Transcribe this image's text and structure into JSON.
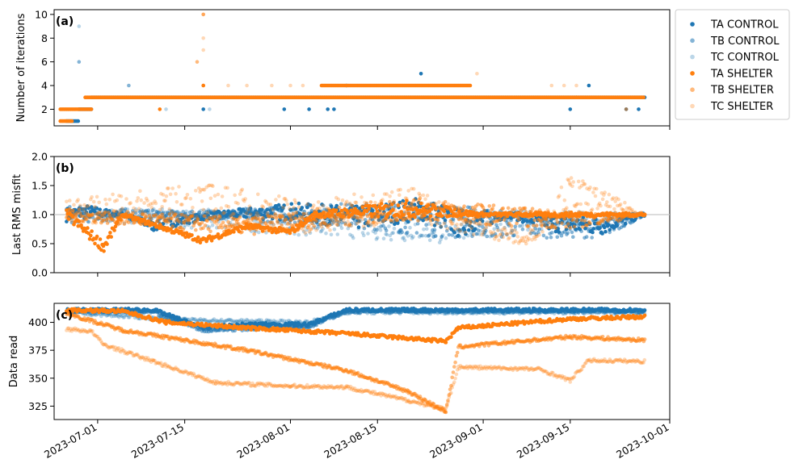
{
  "chart_data": {
    "type": "scatter",
    "x_ticks": [
      "2023-07-01",
      "2023-07-15",
      "2023-08-01",
      "2023-08-15",
      "2023-09-01",
      "2023-09-15",
      "2023-10-01"
    ],
    "x_range": [
      "2023-06-24",
      "2023-10-01"
    ],
    "legend": {
      "position": "right",
      "entries": [
        {
          "label": "TA CONTROL",
          "color": "#1f77b4",
          "alpha": 1.0
        },
        {
          "label": "TB CONTROL",
          "color": "#1f77b4",
          "alpha": 0.55
        },
        {
          "label": "TC CONTROL",
          "color": "#1f77b4",
          "alpha": 0.3
        },
        {
          "label": "TA SHELTER",
          "color": "#ff7f0e",
          "alpha": 1.0
        },
        {
          "label": "TB SHELTER",
          "color": "#ff7f0e",
          "alpha": 0.55
        },
        {
          "label": "TC SHELTER",
          "color": "#ff7f0e",
          "alpha": 0.3
        }
      ]
    },
    "panels": [
      {
        "id": "a",
        "letter": "(a)",
        "ylabel": "Number of iterations",
        "ylim": [
          0.6,
          10.4
        ],
        "yticks": [
          2,
          4,
          6,
          8,
          10
        ],
        "series": [
          {
            "name": "TA CONTROL",
            "segments": [
              {
                "start": "2023-06-26",
                "end": "2023-06-28",
                "y": 1
              },
              {
                "start": "2023-06-28",
                "end": "2023-06-30",
                "y": 2
              },
              {
                "start": "2023-06-30",
                "end": "2023-09-27",
                "y": 3
              }
            ],
            "points": [
              {
                "x": "2023-07-18",
                "y": 2
              },
              {
                "x": "2023-07-31",
                "y": 2
              },
              {
                "x": "2023-08-04",
                "y": 2
              },
              {
                "x": "2023-08-07",
                "y": 2
              },
              {
                "x": "2023-08-08",
                "y": 2
              },
              {
                "x": "2023-08-22",
                "y": 5
              },
              {
                "x": "2023-09-18",
                "y": 4
              },
              {
                "x": "2023-09-15",
                "y": 2
              },
              {
                "x": "2023-09-24",
                "y": 2
              },
              {
                "x": "2023-09-26",
                "y": 2
              },
              {
                "x": "2023-08-10",
                "y": 4
              }
            ]
          },
          {
            "name": "TB CONTROL",
            "segments": [],
            "points": [
              {
                "x": "2023-06-28",
                "y": 6
              },
              {
                "x": "2023-07-06",
                "y": 4
              },
              {
                "x": "2023-06-30",
                "y": 2
              }
            ]
          },
          {
            "name": "TC CONTROL",
            "segments": [],
            "points": [
              {
                "x": "2023-06-28",
                "y": 9
              },
              {
                "x": "2023-07-12",
                "y": 2
              },
              {
                "x": "2023-07-19",
                "y": 2
              }
            ]
          },
          {
            "name": "TA SHELTER",
            "segments": [
              {
                "start": "2023-06-25",
                "end": "2023-06-27",
                "y": 1
              },
              {
                "start": "2023-06-25",
                "end": "2023-06-30",
                "y": 2
              },
              {
                "start": "2023-06-29",
                "end": "2023-09-27",
                "y": 3
              },
              {
                "start": "2023-08-06",
                "end": "2023-08-30",
                "y": 4
              }
            ],
            "points": [
              {
                "x": "2023-07-11",
                "y": 2
              },
              {
                "x": "2023-07-18",
                "y": 4
              },
              {
                "x": "2023-09-16",
                "y": 3
              }
            ]
          },
          {
            "name": "TB SHELTER",
            "segments": [],
            "points": [
              {
                "x": "2023-07-17",
                "y": 6
              },
              {
                "x": "2023-07-18",
                "y": 10
              },
              {
                "x": "2023-07-18",
                "y": 4
              },
              {
                "x": "2023-09-24",
                "y": 2
              }
            ]
          },
          {
            "name": "TC SHELTER",
            "segments": [],
            "points": [
              {
                "x": "2023-07-18",
                "y": 10
              },
              {
                "x": "2023-07-18",
                "y": 8
              },
              {
                "x": "2023-07-18",
                "y": 7
              },
              {
                "x": "2023-07-22",
                "y": 4
              },
              {
                "x": "2023-07-25",
                "y": 4
              },
              {
                "x": "2023-07-29",
                "y": 4
              },
              {
                "x": "2023-08-01",
                "y": 4
              },
              {
                "x": "2023-08-03",
                "y": 4
              },
              {
                "x": "2023-08-31",
                "y": 5
              },
              {
                "x": "2023-09-12",
                "y": 4
              },
              {
                "x": "2023-09-14",
                "y": 4
              },
              {
                "x": "2023-09-16",
                "y": 4
              }
            ]
          }
        ]
      },
      {
        "id": "b",
        "letter": "(b)",
        "ylabel": "Last RMS misfit",
        "ylim": [
          0.0,
          2.0
        ],
        "yticks": [
          0.0,
          0.5,
          1.0,
          1.5,
          2.0
        ],
        "yticklabels": [
          "0.0",
          "0.5",
          "1.0",
          "1.5",
          "2.0"
        ],
        "hline": 1.0,
        "series": [
          {
            "name": "TA CONTROL",
            "profile": [
              {
                "x": "2023-06-26",
                "y": 1.0,
                "spread": 0.12
              },
              {
                "x": "2023-06-29",
                "y": 1.05,
                "spread": 0.12
              },
              {
                "x": "2023-07-05",
                "y": 1.0,
                "spread": 0.03
              },
              {
                "x": "2023-07-10",
                "y": 0.8,
                "spread": 0.08
              },
              {
                "x": "2023-07-20",
                "y": 1.0,
                "spread": 0.05
              },
              {
                "x": "2023-08-01",
                "y": 1.05,
                "spread": 0.15
              },
              {
                "x": "2023-08-12",
                "y": 0.95,
                "spread": 0.2
              },
              {
                "x": "2023-08-22",
                "y": 1.1,
                "spread": 0.2
              },
              {
                "x": "2023-08-28",
                "y": 0.85,
                "spread": 0.25
              },
              {
                "x": "2023-09-05",
                "y": 1.0,
                "spread": 0.05
              },
              {
                "x": "2023-09-12",
                "y": 0.85,
                "spread": 0.15
              },
              {
                "x": "2023-09-20",
                "y": 0.8,
                "spread": 0.15
              },
              {
                "x": "2023-09-27",
                "y": 1.0,
                "spread": 0.03
              }
            ]
          },
          {
            "name": "TB CONTROL",
            "profile": [
              {
                "x": "2023-06-26",
                "y": 1.0,
                "spread": 0.15
              },
              {
                "x": "2023-07-15",
                "y": 1.0,
                "spread": 0.05
              },
              {
                "x": "2023-08-10",
                "y": 1.0,
                "spread": 0.2
              },
              {
                "x": "2023-08-25",
                "y": 0.9,
                "spread": 0.3
              },
              {
                "x": "2023-09-20",
                "y": 0.75,
                "spread": 0.15
              },
              {
                "x": "2023-09-27",
                "y": 1.0,
                "spread": 0.03
              }
            ]
          },
          {
            "name": "TC CONTROL",
            "profile": [
              {
                "x": "2023-06-26",
                "y": 1.0,
                "spread": 0.1
              },
              {
                "x": "2023-08-25",
                "y": 0.8,
                "spread": 0.3
              },
              {
                "x": "2023-09-27",
                "y": 1.0,
                "spread": 0.03
              }
            ]
          },
          {
            "name": "TA SHELTER",
            "profile": [
              {
                "x": "2023-06-26",
                "y": 1.0,
                "spread": 0.08
              },
              {
                "x": "2023-07-02",
                "y": 0.45,
                "spread": 0.1
              },
              {
                "x": "2023-07-05",
                "y": 1.0,
                "spread": 0.03
              },
              {
                "x": "2023-07-18",
                "y": 0.55,
                "spread": 0.05
              },
              {
                "x": "2023-07-25",
                "y": 0.8,
                "spread": 0.05
              },
              {
                "x": "2023-08-01",
                "y": 0.7,
                "spread": 0.05
              },
              {
                "x": "2023-08-05",
                "y": 1.0,
                "spread": 0.05
              },
              {
                "x": "2023-08-20",
                "y": 1.1,
                "spread": 0.15
              },
              {
                "x": "2023-09-01",
                "y": 1.0,
                "spread": 0.03
              },
              {
                "x": "2023-09-15",
                "y": 1.0,
                "spread": 0.04
              },
              {
                "x": "2023-09-27",
                "y": 1.0,
                "spread": 0.03
              }
            ]
          },
          {
            "name": "TB SHELTER",
            "profile": [
              {
                "x": "2023-06-26",
                "y": 1.0,
                "spread": 0.1
              },
              {
                "x": "2023-07-25",
                "y": 0.8,
                "spread": 0.15
              },
              {
                "x": "2023-08-20",
                "y": 1.1,
                "spread": 0.2
              },
              {
                "x": "2023-09-15",
                "y": 0.9,
                "spread": 0.15
              },
              {
                "x": "2023-09-27",
                "y": 1.0,
                "spread": 0.03
              }
            ]
          },
          {
            "name": "TC SHELTER",
            "profile": [
              {
                "x": "2023-06-26",
                "y": 1.05,
                "spread": 0.2
              },
              {
                "x": "2023-07-18",
                "y": 1.2,
                "spread": 0.35
              },
              {
                "x": "2023-08-05",
                "y": 0.95,
                "spread": 0.3
              },
              {
                "x": "2023-08-20",
                "y": 1.2,
                "spread": 0.3
              },
              {
                "x": "2023-09-08",
                "y": 0.55,
                "spread": 0.1
              },
              {
                "x": "2023-09-15",
                "y": 1.4,
                "spread": 0.3
              },
              {
                "x": "2023-09-27",
                "y": 1.0,
                "spread": 0.03
              }
            ]
          }
        ]
      },
      {
        "id": "c",
        "letter": "(c)",
        "ylabel": "Data read",
        "ylim": [
          313,
          417
        ],
        "yticks": [
          325,
          350,
          375,
          400
        ],
        "series": [
          {
            "name": "TA CONTROL",
            "profile": [
              {
                "x": "2023-06-26",
                "y": 411
              },
              {
                "x": "2023-07-10",
                "y": 411
              },
              {
                "x": "2023-07-18",
                "y": 395
              },
              {
                "x": "2023-07-25",
                "y": 398
              },
              {
                "x": "2023-08-04",
                "y": 398
              },
              {
                "x": "2023-08-10",
                "y": 411
              },
              {
                "x": "2023-09-27",
                "y": 411
              }
            ]
          },
          {
            "name": "TB CONTROL",
            "profile": [
              {
                "x": "2023-06-26",
                "y": 410
              },
              {
                "x": "2023-07-10",
                "y": 409
              },
              {
                "x": "2023-07-18",
                "y": 393
              },
              {
                "x": "2023-08-04",
                "y": 396
              },
              {
                "x": "2023-08-10",
                "y": 410
              },
              {
                "x": "2023-09-27",
                "y": 410
              }
            ]
          },
          {
            "name": "TC CONTROL",
            "profile": [
              {
                "x": "2023-06-26",
                "y": 409
              },
              {
                "x": "2023-07-15",
                "y": 402
              },
              {
                "x": "2023-08-04",
                "y": 400
              },
              {
                "x": "2023-08-10",
                "y": 409
              },
              {
                "x": "2023-09-27",
                "y": 409
              }
            ]
          },
          {
            "name": "TA SHELTER",
            "profile": [
              {
                "x": "2023-06-26",
                "y": 411
              },
              {
                "x": "2023-07-05",
                "y": 410
              },
              {
                "x": "2023-07-12",
                "y": 400
              },
              {
                "x": "2023-07-25",
                "y": 395
              },
              {
                "x": "2023-08-10",
                "y": 390
              },
              {
                "x": "2023-08-26",
                "y": 383
              },
              {
                "x": "2023-08-28",
                "y": 395
              },
              {
                "x": "2023-09-15",
                "y": 403
              },
              {
                "x": "2023-09-27",
                "y": 405
              }
            ]
          },
          {
            "name": "TB SHELTER",
            "profile": [
              {
                "x": "2023-06-26",
                "y": 408
              },
              {
                "x": "2023-07-05",
                "y": 393
              },
              {
                "x": "2023-07-25",
                "y": 375
              },
              {
                "x": "2023-08-10",
                "y": 357
              },
              {
                "x": "2023-08-20",
                "y": 338
              },
              {
                "x": "2023-08-26",
                "y": 320
              },
              {
                "x": "2023-08-28",
                "y": 378
              },
              {
                "x": "2023-09-05",
                "y": 382
              },
              {
                "x": "2023-09-15",
                "y": 387
              },
              {
                "x": "2023-09-27",
                "y": 384
              }
            ]
          },
          {
            "name": "TC SHELTER",
            "profile": [
              {
                "x": "2023-06-26",
                "y": 394
              },
              {
                "x": "2023-06-30",
                "y": 392
              },
              {
                "x": "2023-07-02",
                "y": 380
              },
              {
                "x": "2023-07-10",
                "y": 365
              },
              {
                "x": "2023-07-20",
                "y": 346
              },
              {
                "x": "2023-08-01",
                "y": 343
              },
              {
                "x": "2023-08-10",
                "y": 342
              },
              {
                "x": "2023-08-20",
                "y": 330
              },
              {
                "x": "2023-08-26",
                "y": 322
              },
              {
                "x": "2023-08-28",
                "y": 360
              },
              {
                "x": "2023-09-10",
                "y": 358
              },
              {
                "x": "2023-09-15",
                "y": 348
              },
              {
                "x": "2023-09-18",
                "y": 366
              },
              {
                "x": "2023-09-27",
                "y": 365
              }
            ]
          }
        ]
      }
    ]
  }
}
